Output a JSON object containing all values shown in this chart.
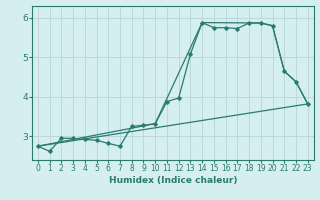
{
  "title": "",
  "xlabel": "Humidex (Indice chaleur)",
  "bg_color": "#d5eef0",
  "grid_color": "#bcd8dc",
  "line_color": "#2a7a70",
  "xlim": [
    -0.5,
    23.5
  ],
  "ylim": [
    2.4,
    6.3
  ],
  "yticks": [
    3,
    4,
    5,
    6
  ],
  "xticks": [
    0,
    1,
    2,
    3,
    4,
    5,
    6,
    7,
    8,
    9,
    10,
    11,
    12,
    13,
    14,
    15,
    16,
    17,
    18,
    19,
    20,
    21,
    22,
    23
  ],
  "series1_x": [
    0,
    1,
    2,
    3,
    4,
    5,
    6,
    7,
    8,
    9,
    10,
    11,
    12,
    13,
    14,
    15,
    16,
    17,
    18,
    19,
    20,
    21,
    22,
    23
  ],
  "series1_y": [
    2.75,
    2.62,
    2.95,
    2.95,
    2.92,
    2.9,
    2.82,
    2.75,
    3.25,
    3.28,
    3.32,
    3.88,
    3.97,
    5.08,
    5.88,
    5.75,
    5.75,
    5.73,
    5.87,
    5.87,
    5.8,
    4.65,
    4.38,
    3.82
  ],
  "series2_x": [
    0,
    23
  ],
  "series2_y": [
    2.75,
    3.82
  ],
  "series3_x": [
    0,
    10,
    14,
    19,
    20,
    21,
    22,
    23
  ],
  "series3_y": [
    2.75,
    3.32,
    5.88,
    5.87,
    5.8,
    4.65,
    4.38,
    3.82
  ]
}
